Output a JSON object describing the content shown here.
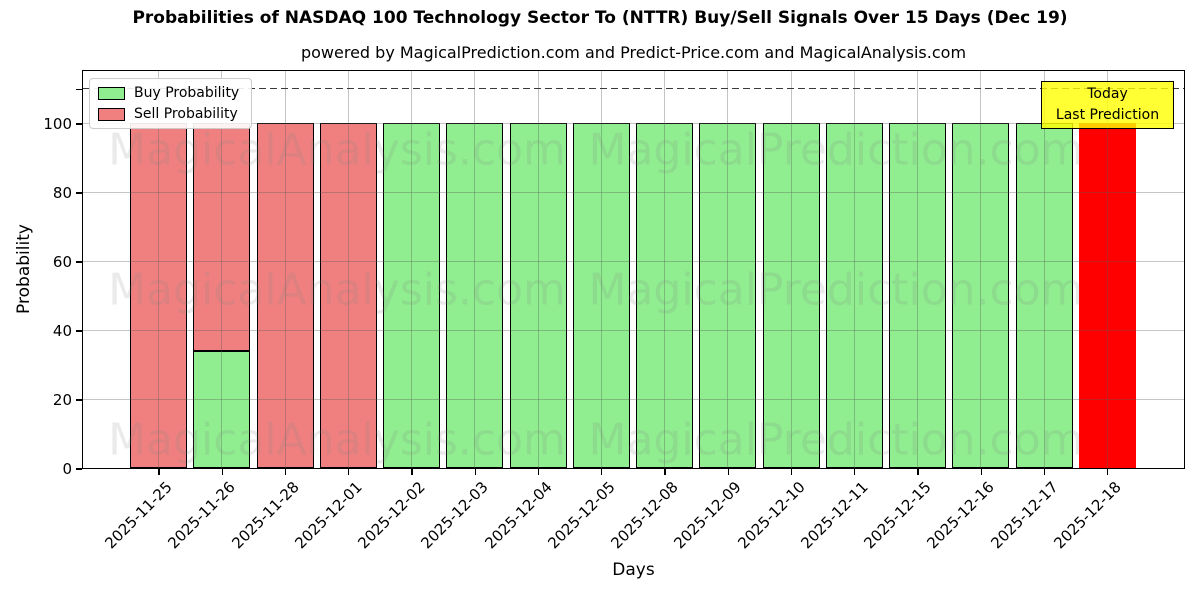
{
  "title": "Probabilities of NASDAQ 100 Technology Sector To (NTTR) Buy/Sell Signals Over 15 Days (Dec 19)",
  "subtitle": "powered by MagicalPrediction.com and Predict-Price.com and MagicalAnalysis.com",
  "legend": {
    "items": [
      {
        "label": "Buy Probability",
        "color": "#90EE90"
      },
      {
        "label": "Sell Probability",
        "color": "#F08080"
      }
    ]
  },
  "annotation": {
    "line1": "Today",
    "line2": "Last Prediction",
    "bg_color": "#FFFF00"
  },
  "watermarks": [
    "MagicalAnalysis.com",
    "MagicalPrediction.com"
  ],
  "axes": {
    "xlabel": "Days",
    "ylabel": "Probability",
    "yticks": [
      0,
      20,
      40,
      60,
      80,
      100
    ],
    "dashed_hline_y": 110
  },
  "colors": {
    "buy": "#90EE90",
    "sell": "#F08080",
    "today_bar": "#FF0000",
    "bar_edge": "#000000",
    "grid": "#5a5a5a",
    "annotation_bg": "#FFFF00"
  },
  "chart_data": {
    "type": "bar",
    "stacked": true,
    "title": "Probabilities of NASDAQ 100 Technology Sector To (NTTR) Buy/Sell Signals Over 15 Days (Dec 19)",
    "subtitle": "powered by MagicalPrediction.com and Predict-Price.com and MagicalAnalysis.com",
    "xlabel": "Days",
    "ylabel": "Probability",
    "ylim": [
      0,
      115.7
    ],
    "yticks": [
      0,
      20,
      40,
      60,
      80,
      100
    ],
    "grid": true,
    "legend_position": "upper left",
    "hline": {
      "y": 110,
      "style": "dashed",
      "color": "#333333"
    },
    "categories": [
      "2025-11-25",
      "2025-11-26",
      "2025-11-28",
      "2025-12-01",
      "2025-12-02",
      "2025-12-03",
      "2025-12-04",
      "2025-12-05",
      "2025-12-08",
      "2025-12-09",
      "2025-12-10",
      "2025-12-11",
      "2025-12-15",
      "2025-12-16",
      "2025-12-17",
      "2025-12-18"
    ],
    "series": [
      {
        "name": "Buy Probability",
        "color": "#90EE90",
        "edge": true,
        "values": [
          0,
          34,
          0,
          0,
          100,
          100,
          100,
          100,
          100,
          100,
          100,
          100,
          100,
          100,
          100,
          0
        ]
      },
      {
        "name": "Sell Probability",
        "color": "#F08080",
        "edge": true,
        "values": [
          100,
          66,
          100,
          100,
          0,
          0,
          0,
          0,
          0,
          0,
          0,
          0,
          0,
          0,
          0,
          0
        ]
      },
      {
        "name": "Today Last Prediction",
        "color": "#FF0000",
        "edge": false,
        "values": [
          0,
          0,
          0,
          0,
          0,
          0,
          0,
          0,
          0,
          0,
          0,
          0,
          0,
          0,
          0,
          100
        ]
      }
    ]
  }
}
